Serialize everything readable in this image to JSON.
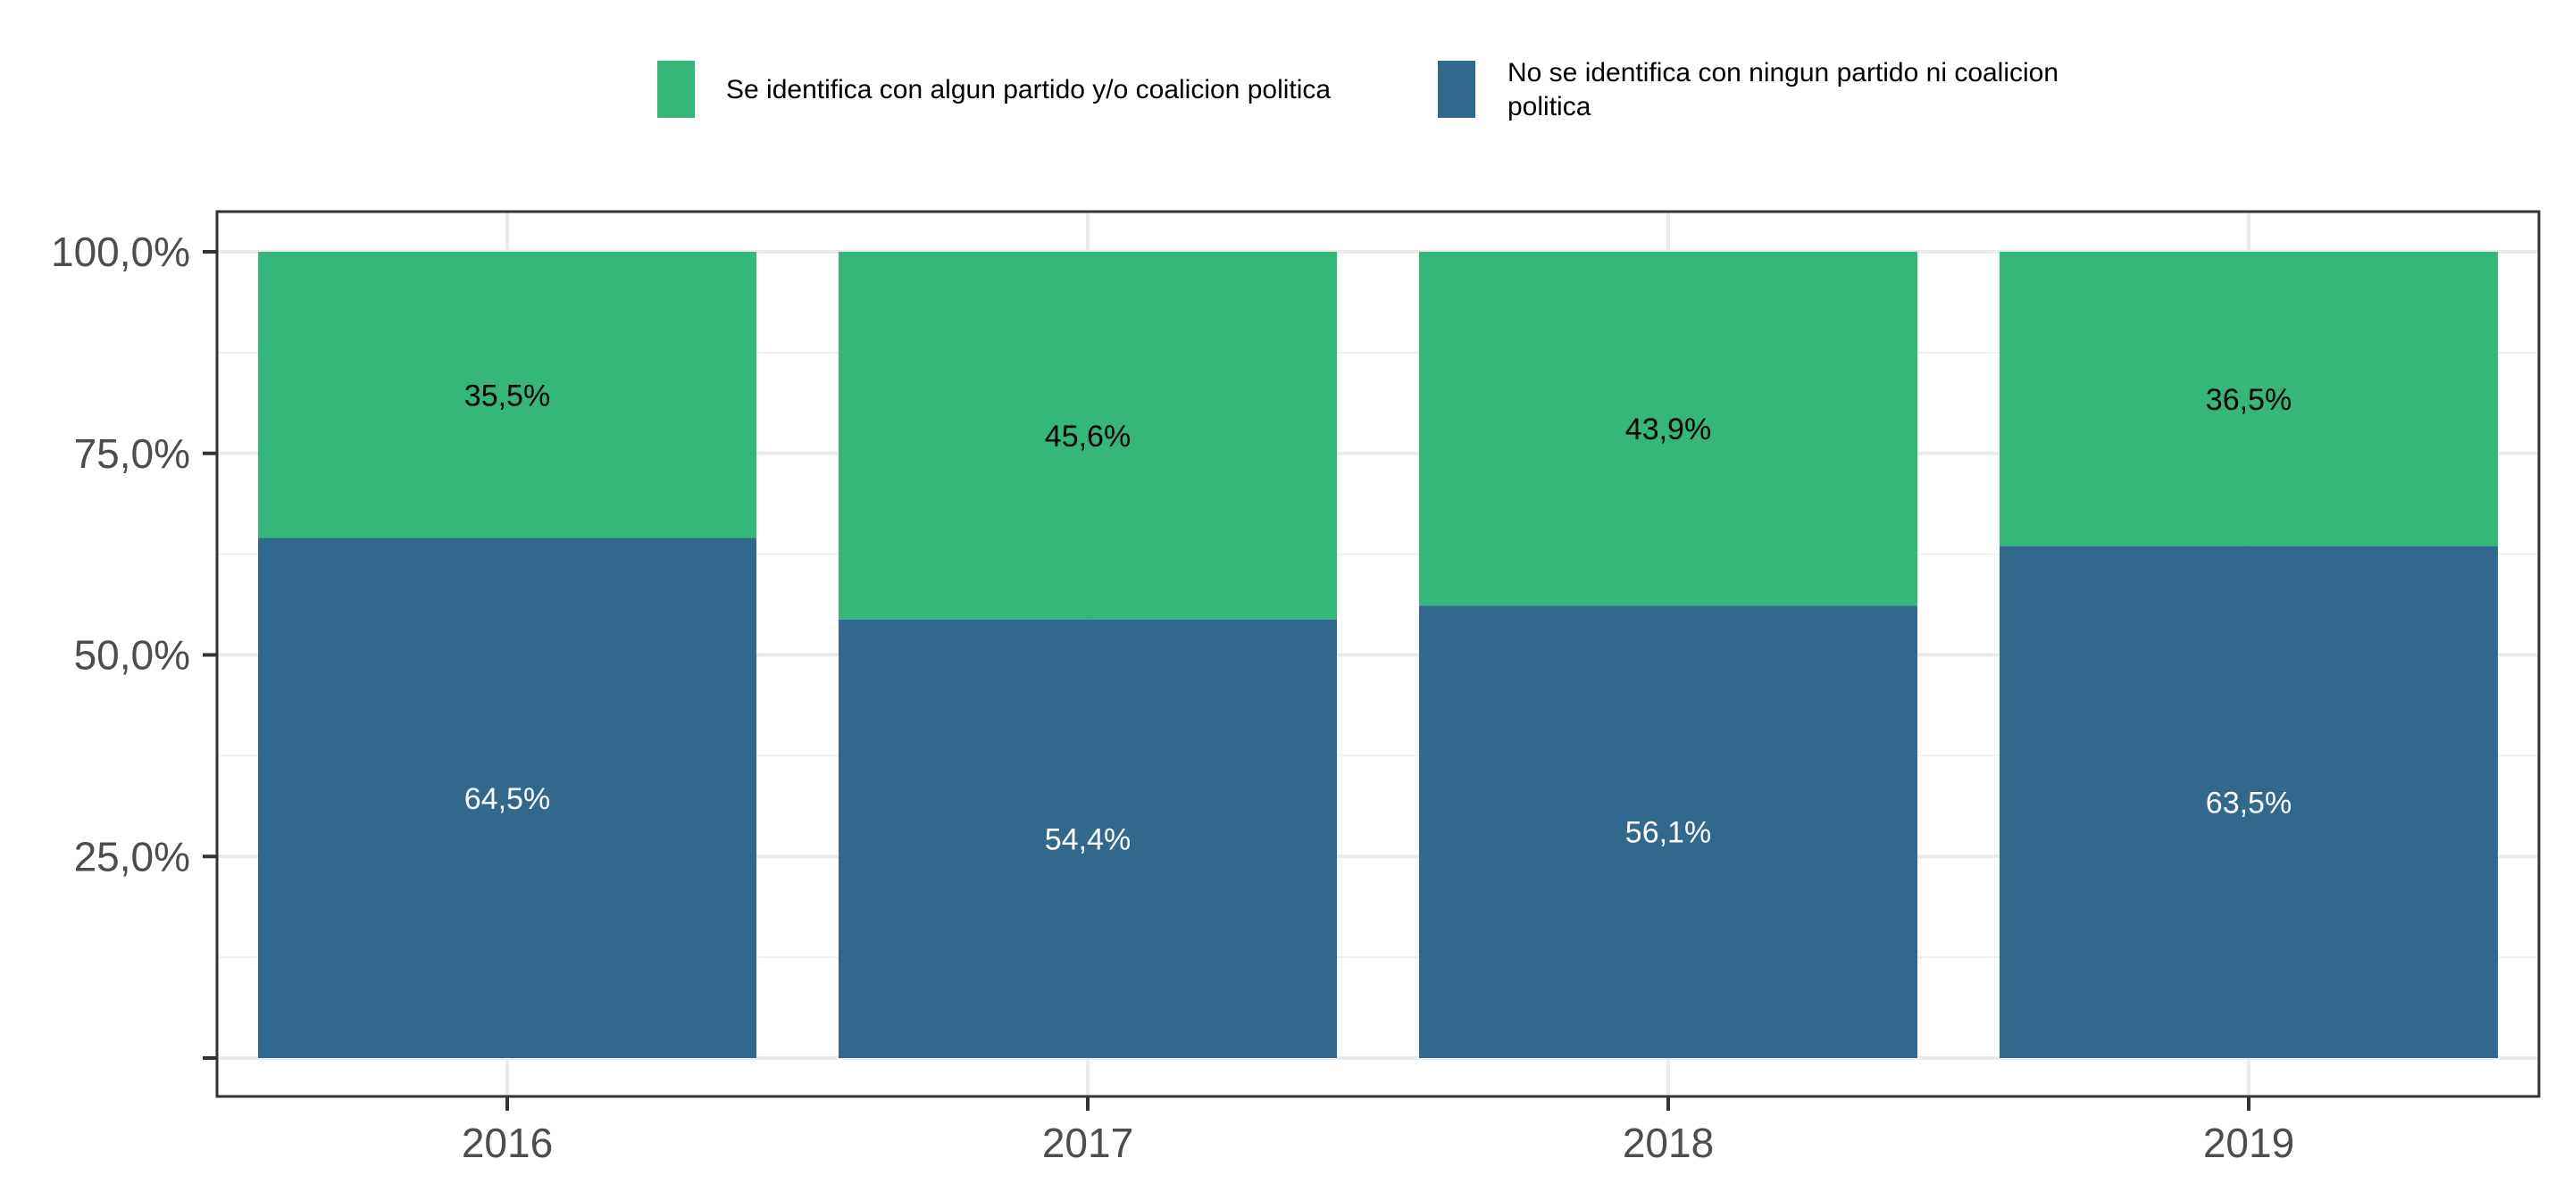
{
  "chart_data": {
    "type": "bar",
    "stacked": true,
    "categories": [
      "2016",
      "2017",
      "2018",
      "2019"
    ],
    "series": [
      {
        "name": "No se identifica con ningun partido ni coalicion politica",
        "name_lines": [
          "No se identifica con ningun partido ni coalicion",
          "politica"
        ],
        "values": [
          64.5,
          54.4,
          56.1,
          63.5
        ],
        "labels": [
          "64,5%",
          "54,4%",
          "56,1%",
          "63,5%"
        ],
        "color": "#31688E",
        "label_color": "#ffffff"
      },
      {
        "name": "Se identifica con algun partido y/o coalicion politica",
        "name_lines": [
          "Se identifica con algun partido y/o coalicion politica"
        ],
        "values": [
          35.5,
          45.6,
          43.9,
          36.5
        ],
        "labels": [
          "35,5%",
          "45,6%",
          "43,9%",
          "36,5%"
        ],
        "color": "#35B779",
        "label_color": "#000000"
      }
    ],
    "ylim": [
      0,
      100
    ],
    "yticks": [
      25,
      50,
      75,
      100
    ],
    "ytick_labels": [
      "25,0%",
      "50,0%",
      "75,0%",
      "100,0%"
    ],
    "xlabel": "",
    "ylabel": "",
    "title": "",
    "legend_position": "top",
    "grid": true
  }
}
